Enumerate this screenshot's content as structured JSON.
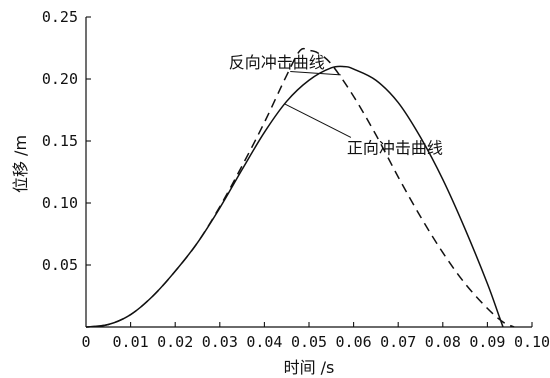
{
  "chart_data": {
    "type": "line",
    "title": "",
    "xlabel": "时间 /s",
    "ylabel": "位移 /m",
    "xlim": [
      0,
      0.1
    ],
    "ylim": [
      0,
      0.25
    ],
    "x_ticks": [
      0,
      0.01,
      0.02,
      0.03,
      0.04,
      0.05,
      0.06,
      0.07,
      0.08,
      0.09,
      0.1
    ],
    "x_tick_labels": [
      "0",
      "0.01",
      "0.02",
      "0.03",
      "0.04",
      "0.05",
      "0.06",
      "0.07",
      "0.08",
      "0.09",
      "0.10"
    ],
    "y_ticks": [
      0.05,
      0.1,
      0.15,
      0.2,
      0.25
    ],
    "y_tick_labels": [
      "0.05",
      "0.10",
      "0.15",
      "0.20",
      "0.25"
    ],
    "grid": false,
    "series": [
      {
        "name": "正向冲击曲线",
        "style": "solid",
        "color": "#111111",
        "x": [
          0,
          0.005,
          0.01,
          0.015,
          0.02,
          0.025,
          0.03,
          0.035,
          0.04,
          0.045,
          0.05,
          0.055,
          0.058,
          0.06,
          0.065,
          0.07,
          0.075,
          0.08,
          0.085,
          0.09,
          0.0925,
          0.0935
        ],
        "y": [
          0,
          0.002,
          0.01,
          0.025,
          0.045,
          0.068,
          0.096,
          0.127,
          0.157,
          0.182,
          0.199,
          0.209,
          0.21,
          0.208,
          0.199,
          0.181,
          0.153,
          0.119,
          0.079,
          0.035,
          0.01,
          0
        ]
      },
      {
        "name": "反向冲击曲线",
        "style": "dashed",
        "color": "#111111",
        "x": [
          0,
          0.005,
          0.01,
          0.015,
          0.02,
          0.025,
          0.03,
          0.035,
          0.04,
          0.045,
          0.048,
          0.05,
          0.052,
          0.055,
          0.06,
          0.065,
          0.07,
          0.075,
          0.08,
          0.085,
          0.09,
          0.0935,
          0.096
        ],
        "y": [
          0,
          0.002,
          0.01,
          0.025,
          0.045,
          0.068,
          0.097,
          0.13,
          0.165,
          0.203,
          0.223,
          0.223,
          0.221,
          0.212,
          0.186,
          0.155,
          0.121,
          0.089,
          0.06,
          0.035,
          0.015,
          0.004,
          0
        ]
      }
    ],
    "annotations": [
      {
        "text": "反向冲击曲线",
        "series": "反向冲击曲线",
        "label_at": [
          0.032,
          0.209
        ],
        "pointer_to": [
          0.0458,
          0.206
        ]
      },
      {
        "text": "正向冲击曲线",
        "series": "正向冲击曲线",
        "label_at": [
          0.0585,
          0.14
        ],
        "pointer_to": [
          0.0445,
          0.18
        ]
      }
    ]
  }
}
